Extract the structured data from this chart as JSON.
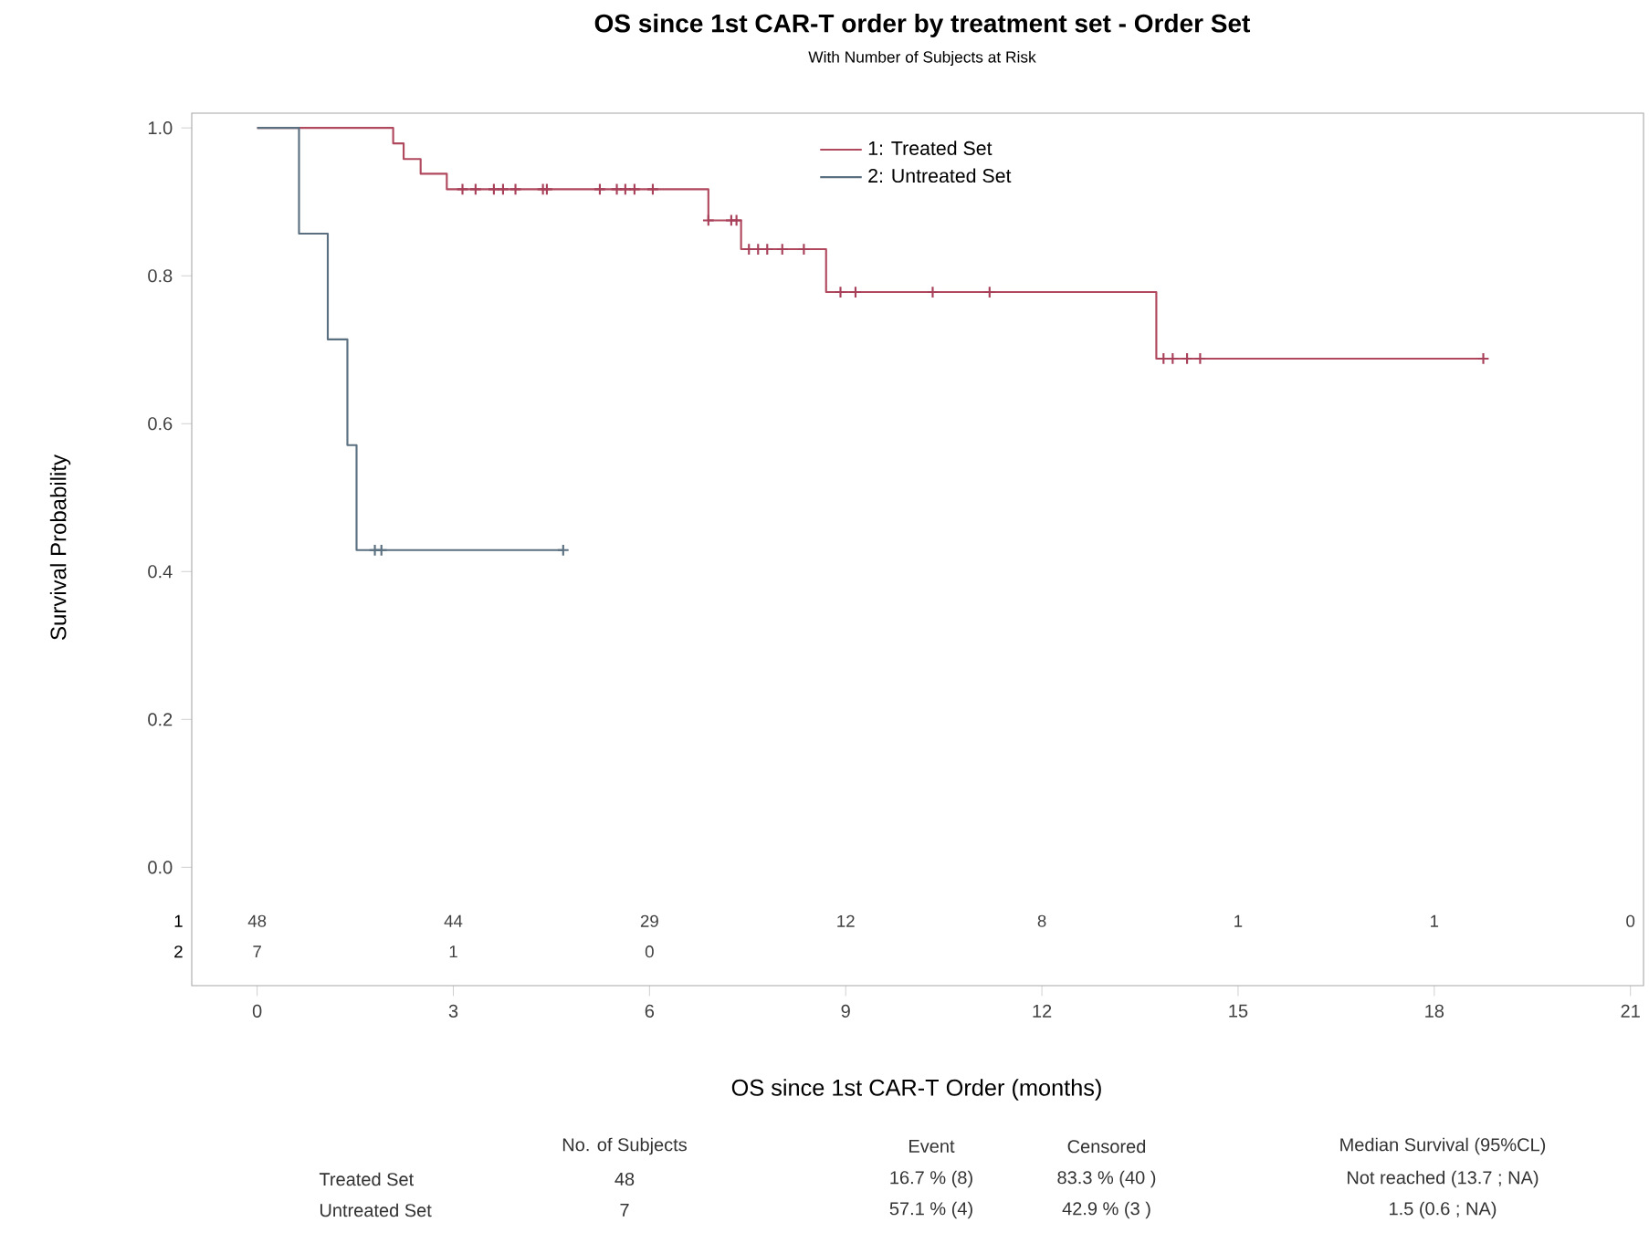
{
  "chart_data": {
    "type": "step",
    "title": "OS since 1st CAR-T order by treatment set - Order Set",
    "subtitle": "With Number of Subjects at Risk",
    "xlabel": "OS since 1st CAR-T Order (months)",
    "ylabel": "Survival Probability",
    "xlim": [
      -1,
      21.2
    ],
    "xticks": [
      0,
      3,
      6,
      9,
      12,
      15,
      18,
      21
    ],
    "ylim": [
      -0.16,
      1.02
    ],
    "yticks": [
      {
        "value": 0,
        "label": "0.0"
      },
      {
        "value": 0.2,
        "label": "0.2"
      },
      {
        "value": 0.4,
        "label": "0.4"
      },
      {
        "value": 0.6,
        "label": "0.6"
      },
      {
        "value": 0.8,
        "label": "0.8"
      },
      {
        "value": 1,
        "label": "1.0"
      }
    ],
    "grid": false,
    "legend": "top",
    "series": [
      {
        "name": "1: Treated Set",
        "type": "step",
        "color": "#b0485e",
        "x": [
          0,
          2.08,
          2.24,
          2.5,
          2.9,
          6.9,
          7.4,
          8.7,
          13.75,
          18.75
        ],
        "values": [
          1,
          0.979,
          0.958,
          0.938,
          0.917,
          0.875,
          0.836,
          0.778,
          0.688,
          0.688
        ]
      },
      {
        "name": "2: Untreated Set",
        "type": "step",
        "color": "#5a7080",
        "x": [
          0,
          0.64,
          1.08,
          1.38,
          1.52,
          4.68
        ],
        "values": [
          1,
          0.857,
          0.714,
          0.571,
          0.429,
          0.429
        ]
      },
      {
        "type": "scatter",
        "marker": "cross",
        "color": "#a8405a",
        "x": [
          3.14,
          3.34,
          3.62,
          3.76,
          3.95,
          4.37,
          4.43,
          5.24,
          5.5,
          5.63,
          5.77,
          6.05,
          6.9,
          7.25,
          7.33,
          7.52,
          7.66,
          7.8,
          8.03,
          8.36,
          8.92,
          9.15,
          10.33,
          11.2,
          13.86,
          14.0,
          14.22,
          14.42,
          18.75
        ],
        "values": [
          0.917,
          0.917,
          0.917,
          0.917,
          0.917,
          0.917,
          0.917,
          0.917,
          0.917,
          0.917,
          0.917,
          0.917,
          0.875,
          0.875,
          0.875,
          0.836,
          0.836,
          0.836,
          0.836,
          0.836,
          0.778,
          0.778,
          0.778,
          0.778,
          0.688,
          0.688,
          0.688,
          0.688,
          0.688
        ]
      },
      {
        "type": "scatter",
        "marker": "cross",
        "color": "#5a7080",
        "x": [
          1.8,
          1.9,
          4.68
        ],
        "values": [
          0.429,
          0.429,
          0.429
        ]
      }
    ],
    "annotations": [
      "1",
      "48",
      "44",
      "29",
      "12",
      "8",
      "1",
      "1",
      "0",
      "2",
      "7",
      "1",
      "0",
      "No. of Subjects",
      "Event",
      "Censored",
      "Median Survival (95%CL)",
      "Treated Set",
      "48",
      "16.7 % (8)",
      "83.3 % (40 )",
      "Not reached (13.7 ; NA)",
      "Untreated Set",
      "7",
      "57.1 % (4)",
      "42.9 % (3 )",
      "1.5 (0.6 ; NA)"
    ]
  }
}
